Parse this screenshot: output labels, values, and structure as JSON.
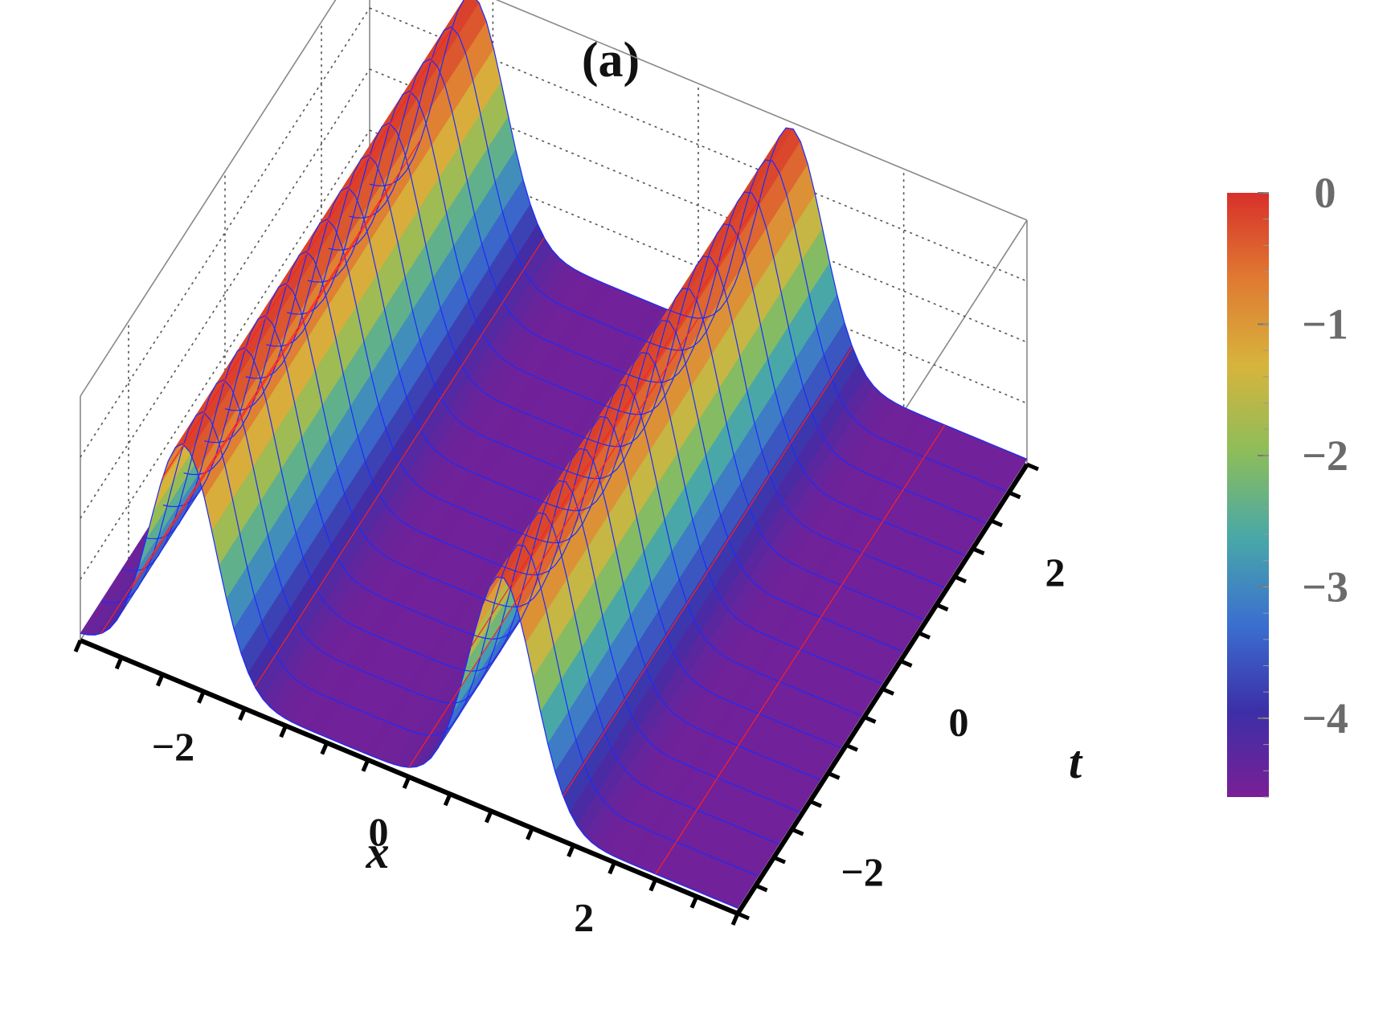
{
  "figure": {
    "panel_label": "(a)"
  },
  "chart_data": {
    "type": "surface3d",
    "title": "(a)",
    "xlabel": "x",
    "ylabel": "t",
    "zlabel": "",
    "x_ticks": [
      "−2",
      "0",
      "2"
    ],
    "t_ticks": [
      "−2",
      "0",
      "2"
    ],
    "x_range": [
      -3.2,
      3.2
    ],
    "t_range": [
      -3.0,
      3.0
    ],
    "z_range": [
      -4.6,
      0
    ],
    "surface": {
      "description_values": {
        "num_solitons": 2,
        "soliton_1": {
          "ridge_center_x": -2.2,
          "ridge_width": 0.45,
          "peak_z": -0.1,
          "modulation": "z peak varies periodically with t"
        },
        "soliton_2": {
          "ridge_center_x": 0.9,
          "ridge_width": 0.45,
          "peak_z": -0.1,
          "modulation": "z peak varies periodically with t"
        },
        "background_z": -4.5
      }
    },
    "colorbar": {
      "ticks": [
        "0",
        "−1",
        "−2",
        "−3",
        "−4"
      ],
      "tick_values": [
        0,
        -1,
        -2,
        -3,
        -4
      ],
      "range": [
        -4.6,
        0
      ],
      "colors": [
        "#7a1f96",
        "#3c2fa8",
        "#3b6fd0",
        "#48a8a8",
        "#8dbd5a",
        "#d7b43c",
        "#e07a32",
        "#d8302a"
      ]
    },
    "mesh_lines": {
      "t_lines_color": "#1a2cff",
      "x_lines_color": "#ff2020"
    },
    "grid": true
  }
}
